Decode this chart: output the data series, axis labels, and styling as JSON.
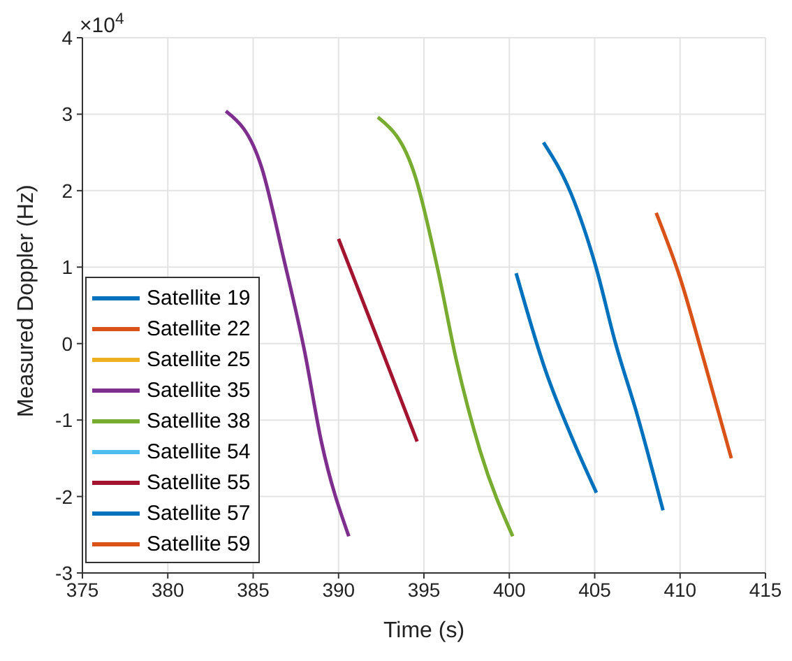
{
  "chart_data": {
    "type": "line",
    "xlabel": "Time (s)",
    "ylabel": "Measured Doppler (Hz)",
    "annotations": [
      "×10$^{4}$"
    ],
    "xlim": [
      375,
      415
    ],
    "xticks": [
      375,
      380,
      385,
      390,
      395,
      400,
      405,
      410,
      415
    ],
    "ylim": [
      -3,
      4
    ],
    "yticks": [
      -3,
      -2,
      -1,
      0,
      1,
      2,
      3,
      4
    ],
    "grid": true,
    "legend": "bottom left",
    "marker": "none",
    "line_style": "solid",
    "series": [
      {
        "name": "Satellite 19",
        "color": "#0072bd",
        "x": [
          400.4,
          402.1,
          403.8,
          405.1
        ],
        "values": [
          0.92,
          -0.34,
          -1.3,
          -1.95
        ]
      },
      {
        "name": "Satellite 22",
        "color": "#d95319"
      },
      {
        "name": "Satellite 25",
        "color": "#edb120"
      },
      {
        "name": "Satellite 35",
        "color": "#7e2f8e",
        "x": [
          383.4,
          385.5,
          386.8,
          388.0,
          389.0,
          390.6
        ],
        "values": [
          3.04,
          2.3,
          1.1,
          -0.09,
          -1.29,
          -2.52
        ]
      },
      {
        "name": "Satellite 38",
        "color": "#77ac30",
        "x": [
          392.3,
          394.5,
          395.8,
          396.9,
          398.3,
          400.2
        ],
        "values": [
          2.96,
          2.18,
          0.98,
          -0.22,
          -1.41,
          -2.52
        ]
      },
      {
        "name": "Satellite 54",
        "color": "#4dbeee"
      },
      {
        "name": "Satellite 55",
        "color": "#a2142f",
        "x": [
          390.0,
          392.3,
          394.6
        ],
        "values": [
          1.37,
          0.05,
          -1.28
        ]
      },
      {
        "name": "Satellite 57",
        "color": "#0072bd",
        "x": [
          402.0,
          403.6,
          405.1,
          406.2,
          407.5,
          409.0
        ],
        "values": [
          2.63,
          1.97,
          0.98,
          0.02,
          -0.94,
          -2.18
        ]
      },
      {
        "name": "Satellite 59",
        "color": "#d95319",
        "x": [
          408.6,
          410.0,
          411.4,
          413.0
        ],
        "values": [
          1.71,
          0.86,
          -0.22,
          -1.5
        ]
      }
    ]
  }
}
